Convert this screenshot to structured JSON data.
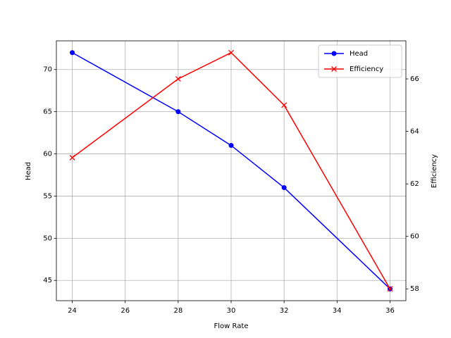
{
  "chart_data": {
    "type": "line",
    "x": [
      24,
      28,
      30,
      32,
      36
    ],
    "xlabel": "Flow Rate",
    "ylabel": "Head",
    "y2label": "Efficiency",
    "series": [
      {
        "name": "Head",
        "color": "#0000ff",
        "marker": "o",
        "values": [
          72,
          65,
          61,
          56,
          44
        ]
      },
      {
        "name": "Efficiency",
        "color": "#ff0000",
        "marker": "x",
        "axis": "y2",
        "values": [
          63,
          66,
          67,
          65,
          58
        ]
      }
    ],
    "xlim": [
      23.4,
      36.6
    ],
    "xticks": [
      24,
      26,
      28,
      30,
      32,
      34,
      36
    ],
    "ylim": [
      42.6,
      73.4
    ],
    "yticks": [
      45,
      50,
      55,
      60,
      65,
      70
    ],
    "y2lim": [
      57.55,
      67.45
    ],
    "y2ticks": [
      58,
      60,
      62,
      64,
      66
    ],
    "grid": true,
    "legend": "upper right"
  }
}
